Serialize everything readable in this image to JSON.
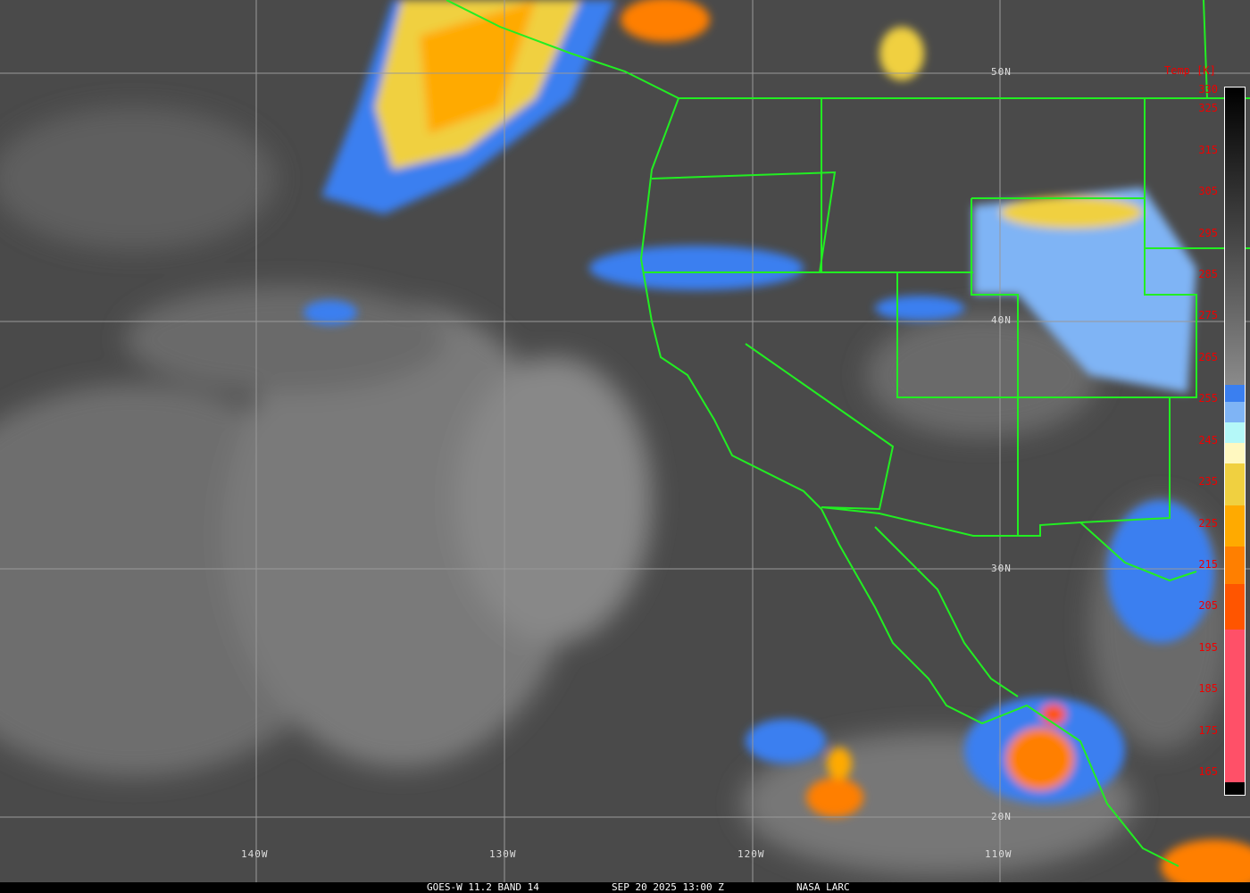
{
  "map": {
    "lat_labels": [
      "50N",
      "40N",
      "30N",
      "20N"
    ],
    "lon_labels": [
      "140W",
      "130W",
      "120W",
      "110W"
    ]
  },
  "colorbar": {
    "title": "Temp [K]",
    "ticks": [
      "330",
      "325",
      "315",
      "305",
      "295",
      "285",
      "275",
      "265",
      "255",
      "245",
      "235",
      "225",
      "215",
      "205",
      "195",
      "185",
      "175",
      "165"
    ],
    "segments": [
      {
        "from": "#000000",
        "to": "#8a8a8a",
        "range": [
          258,
          330
        ]
      },
      {
        "color": "#3a7ff0",
        "range": [
          254,
          258
        ]
      },
      {
        "color": "#7fb4f5",
        "range": [
          249,
          254
        ]
      },
      {
        "color": "#b4f8f8",
        "range": [
          244,
          249
        ]
      },
      {
        "color": "#fff8c0",
        "range": [
          239,
          244
        ]
      },
      {
        "color": "#f0d040",
        "range": [
          229,
          239
        ]
      },
      {
        "color": "#ffaa00",
        "range": [
          219,
          229
        ]
      },
      {
        "color": "#ff7f00",
        "range": [
          210,
          219
        ]
      },
      {
        "color": "#ff5500",
        "range": [
          199,
          210
        ]
      },
      {
        "color": "#ff5068",
        "range": [
          162,
          199
        ]
      },
      {
        "color": "#000000",
        "range": [
          159,
          162
        ]
      }
    ]
  },
  "footer": {
    "satellite": "GOES-W 11.2 BAND 14",
    "datetime": "SEP 20 2025 13:00 Z",
    "source": "NASA LARC"
  }
}
